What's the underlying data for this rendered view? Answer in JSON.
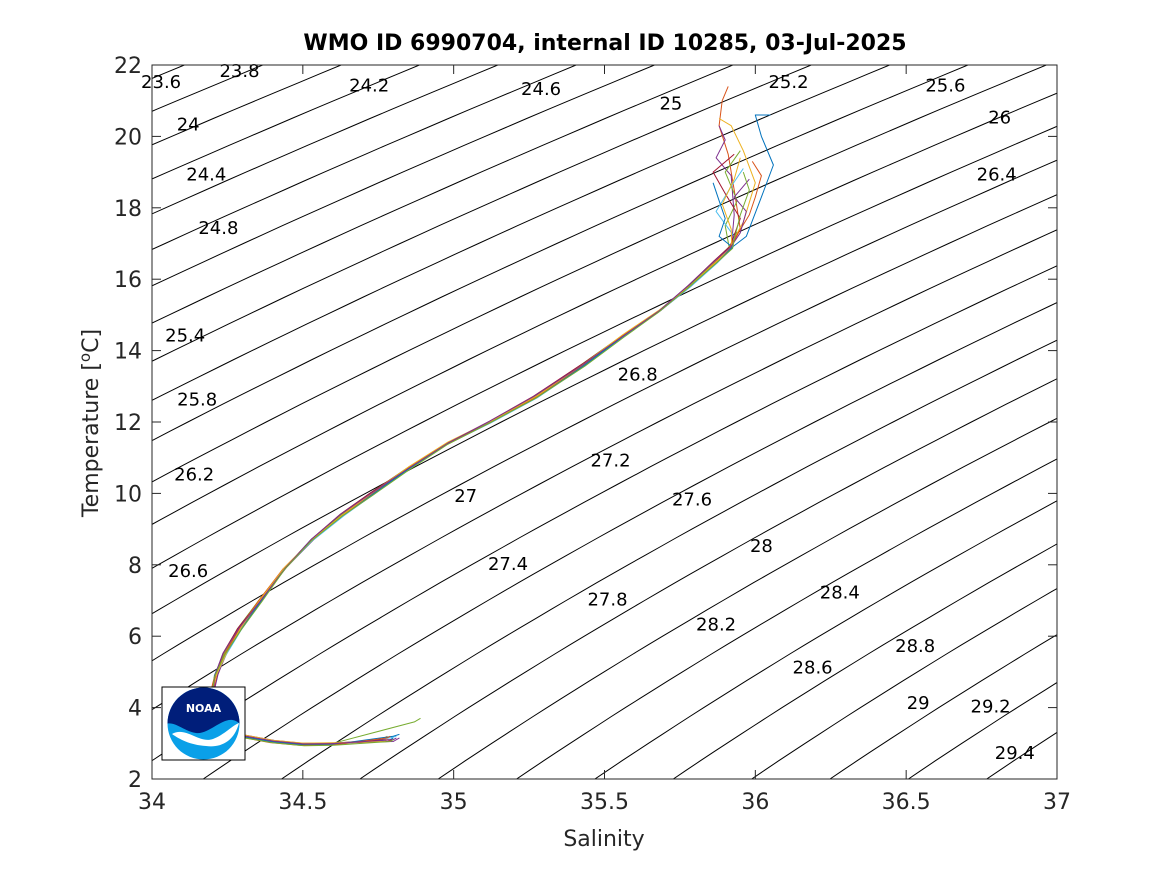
{
  "chart_data": {
    "type": "line",
    "title": "WMO ID 6990704, internal ID 10285, 03-Jul-2025",
    "xlabel": "Salinity",
    "ylabel_main": "Temperature [",
    "ylabel_sup": "o",
    "ylabel_end": "C]",
    "xlim": [
      34,
      37
    ],
    "ylim": [
      2,
      22
    ],
    "xticks": [
      "34",
      "34.5",
      "35",
      "35.5",
      "36",
      "36.5",
      "37"
    ],
    "yticks": [
      "2",
      "4",
      "6",
      "8",
      "10",
      "12",
      "14",
      "16",
      "18",
      "20",
      "22"
    ],
    "grid": false,
    "density_isopycnals": [
      23.6,
      23.8,
      24,
      24.2,
      24.4,
      24.6,
      24.8,
      25,
      25.2,
      25.4,
      25.6,
      25.8,
      26,
      26.2,
      26.4,
      26.6,
      26.8,
      27,
      27.2,
      27.4,
      27.6,
      27.8,
      28,
      28.2,
      28.4,
      28.6,
      28.8,
      29,
      29.2,
      29.4
    ],
    "contour_labels": [
      {
        "text": "23.6",
        "x": 34.03,
        "y": 21.5
      },
      {
        "text": "23.8",
        "x": 34.29,
        "y": 21.8
      },
      {
        "text": "24",
        "x": 34.12,
        "y": 20.3
      },
      {
        "text": "24.2",
        "x": 34.72,
        "y": 21.4
      },
      {
        "text": "24.4",
        "x": 34.18,
        "y": 18.9
      },
      {
        "text": "24.6",
        "x": 35.29,
        "y": 21.3
      },
      {
        "text": "24.8",
        "x": 34.22,
        "y": 17.4
      },
      {
        "text": "25",
        "x": 35.72,
        "y": 20.9
      },
      {
        "text": "25.2",
        "x": 36.11,
        "y": 21.5
      },
      {
        "text": "25.4",
        "x": 34.11,
        "y": 14.4
      },
      {
        "text": "25.6",
        "x": 36.63,
        "y": 21.4
      },
      {
        "text": "25.8",
        "x": 34.15,
        "y": 12.6
      },
      {
        "text": "26",
        "x": 36.81,
        "y": 20.5
      },
      {
        "text": "26.2",
        "x": 34.14,
        "y": 10.5
      },
      {
        "text": "26.4",
        "x": 36.8,
        "y": 18.9
      },
      {
        "text": "26.6",
        "x": 34.12,
        "y": 7.8
      },
      {
        "text": "26.8",
        "x": 35.61,
        "y": 13.3
      },
      {
        "text": "27",
        "x": 35.04,
        "y": 9.9
      },
      {
        "text": "27.2",
        "x": 35.52,
        "y": 10.9
      },
      {
        "text": "27.4",
        "x": 35.18,
        "y": 8.0
      },
      {
        "text": "27.6",
        "x": 35.79,
        "y": 9.8
      },
      {
        "text": "27.8",
        "x": 35.51,
        "y": 7.0
      },
      {
        "text": "28",
        "x": 36.02,
        "y": 8.5
      },
      {
        "text": "28.2",
        "x": 35.87,
        "y": 6.3
      },
      {
        "text": "28.4",
        "x": 36.28,
        "y": 7.2
      },
      {
        "text": "28.6",
        "x": 36.19,
        "y": 5.1
      },
      {
        "text": "28.8",
        "x": 36.53,
        "y": 5.7
      },
      {
        "text": "29",
        "x": 36.54,
        "y": 4.1
      },
      {
        "text": "29.2",
        "x": 36.78,
        "y": 4.0
      },
      {
        "text": "29.4",
        "x": 36.86,
        "y": 2.7
      }
    ],
    "series": [
      {
        "color": "#0072BD",
        "tail": [
          [
            34.79,
            3.1
          ],
          [
            34.8,
            3.15
          ]
        ],
        "top": [
          [
            35.97,
            17.2
          ],
          [
            36.02,
            18.3
          ],
          [
            36.06,
            19.2
          ],
          [
            36.02,
            20.0
          ],
          [
            36.0,
            20.6
          ],
          [
            36.05,
            20.6
          ]
        ],
        "dx": 0.0,
        "dy": 0.0
      },
      {
        "color": "#D95319",
        "tail": [
          [
            34.78,
            3.05
          ],
          [
            34.8,
            3.1
          ]
        ],
        "top": [
          [
            35.95,
            17.4
          ],
          [
            35.93,
            18.5
          ],
          [
            35.91,
            19.5
          ],
          [
            35.88,
            20.3
          ],
          [
            35.89,
            21.0
          ],
          [
            35.91,
            21.4
          ]
        ],
        "dx": 0.01,
        "dy": 0.05
      },
      {
        "color": "#EDB120",
        "tail": [
          [
            34.76,
            3.1
          ],
          [
            34.78,
            3.2
          ]
        ],
        "top": [
          [
            35.96,
            17.6
          ],
          [
            36.0,
            18.7
          ],
          [
            35.96,
            19.6
          ],
          [
            35.92,
            20.3
          ],
          [
            35.88,
            20.5
          ]
        ],
        "dx": -0.01,
        "dy": -0.05
      },
      {
        "color": "#7E2F8E",
        "tail": [
          [
            34.8,
            3.05
          ],
          [
            34.82,
            3.15
          ]
        ],
        "top": [
          [
            35.93,
            17.8
          ],
          [
            35.92,
            18.9
          ],
          [
            35.87,
            19.4
          ],
          [
            35.9,
            19.9
          ],
          [
            35.88,
            20.3
          ]
        ],
        "dx": 0.012,
        "dy": 0.1
      },
      {
        "color": "#77AC30",
        "tail": [
          [
            34.87,
            3.6
          ],
          [
            34.89,
            3.7
          ]
        ],
        "top": [
          [
            35.9,
            17.5
          ],
          [
            35.94,
            18.2
          ],
          [
            35.9,
            19.0
          ],
          [
            35.95,
            19.6
          ]
        ],
        "dx": -0.008,
        "dy": 0.02
      },
      {
        "color": "#4DBEEE",
        "tail": [
          [
            34.79,
            3.15
          ],
          [
            34.81,
            3.2
          ]
        ],
        "top": [
          [
            35.93,
            17.2
          ],
          [
            35.87,
            17.9
          ],
          [
            35.92,
            18.6
          ],
          [
            35.96,
            19.1
          ]
        ],
        "dx": 0.006,
        "dy": -0.08
      },
      {
        "color": "#A2142F",
        "tail": [
          [
            34.77,
            3.1
          ],
          [
            34.8,
            3.1
          ]
        ],
        "top": [
          [
            35.95,
            17.7
          ],
          [
            35.9,
            18.4
          ],
          [
            35.86,
            19.0
          ],
          [
            35.93,
            19.5
          ]
        ],
        "dx": -0.005,
        "dy": 0.07
      },
      {
        "color": "#0072BD",
        "tail": [
          [
            34.8,
            3.2
          ],
          [
            34.82,
            3.25
          ]
        ],
        "top": [
          [
            35.88,
            17.2
          ],
          [
            35.9,
            17.7
          ],
          [
            35.88,
            18.2
          ],
          [
            35.86,
            18.7
          ]
        ],
        "dx": 0.004,
        "dy": -0.03
      },
      {
        "color": "#D95319",
        "tail": [
          [
            34.78,
            3.15
          ],
          [
            34.79,
            3.2
          ]
        ],
        "top": [
          [
            35.98,
            17.8
          ],
          [
            36.0,
            18.3
          ],
          [
            36.02,
            18.9
          ],
          [
            35.99,
            19.3
          ]
        ],
        "dx": -0.012,
        "dy": -0.1
      },
      {
        "color": "#EDB120",
        "tail": [
          [
            34.77,
            3.05
          ],
          [
            34.78,
            3.1
          ]
        ],
        "top": [
          [
            35.92,
            17.4
          ],
          [
            35.89,
            18.1
          ],
          [
            35.93,
            18.8
          ],
          [
            35.95,
            19.4
          ]
        ],
        "dx": 0.008,
        "dy": 0.12
      },
      {
        "color": "#7E2F8E",
        "tail": [
          [
            34.8,
            3.1
          ],
          [
            34.81,
            3.15
          ]
        ],
        "top": [
          [
            35.95,
            17.3
          ],
          [
            35.97,
            17.9
          ],
          [
            35.93,
            18.3
          ],
          [
            35.98,
            18.8
          ]
        ],
        "dx": -0.003,
        "dy": 0.04
      },
      {
        "color": "#77AC30",
        "tail": [
          [
            34.79,
            3.05
          ],
          [
            34.8,
            3.1
          ]
        ],
        "top": [
          [
            35.93,
            17.1
          ],
          [
            35.95,
            17.8
          ],
          [
            35.98,
            18.5
          ],
          [
            35.96,
            19.0
          ]
        ],
        "dx": 0.002,
        "dy": -0.12
      }
    ],
    "core_profile": [
      [
        34.6,
        2.98
      ],
      [
        34.5,
        2.97
      ],
      [
        34.4,
        3.05
      ],
      [
        34.3,
        3.2
      ],
      [
        34.24,
        3.4
      ],
      [
        34.21,
        3.7
      ],
      [
        34.2,
        4.0
      ],
      [
        34.2,
        4.4
      ],
      [
        34.21,
        4.9
      ],
      [
        34.24,
        5.5
      ],
      [
        34.29,
        6.2
      ],
      [
        34.36,
        7.0
      ],
      [
        34.44,
        7.9
      ],
      [
        34.53,
        8.7
      ],
      [
        34.63,
        9.4
      ],
      [
        34.73,
        10.0
      ],
      [
        34.85,
        10.7
      ],
      [
        34.98,
        11.4
      ],
      [
        35.12,
        12.0
      ],
      [
        35.27,
        12.7
      ],
      [
        35.43,
        13.6
      ],
      [
        35.56,
        14.4
      ],
      [
        35.68,
        15.1
      ],
      [
        35.78,
        15.8
      ],
      [
        35.87,
        16.5
      ],
      [
        35.92,
        16.9
      ]
    ],
    "logo_text": "NOAA"
  }
}
